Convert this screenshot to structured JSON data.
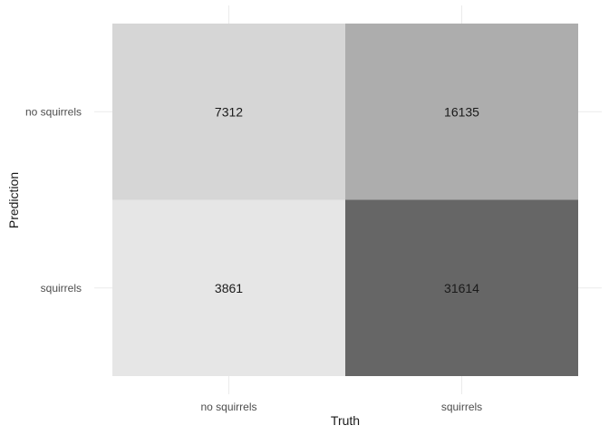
{
  "chart_data": {
    "type": "heatmap",
    "title": "",
    "xlabel": "Truth",
    "ylabel": "Prediction",
    "x_categories": [
      "no squirrels",
      "squirrels"
    ],
    "y_categories": [
      "no squirrels",
      "squirrels"
    ],
    "cells": [
      {
        "truth": "no squirrels",
        "prediction": "no squirrels",
        "value": 7312
      },
      {
        "truth": "squirrels",
        "prediction": "no squirrels",
        "value": 16135
      },
      {
        "truth": "no squirrels",
        "prediction": "squirrels",
        "value": 3861
      },
      {
        "truth": "squirrels",
        "prediction": "squirrels",
        "value": 31614
      }
    ],
    "grid": true,
    "legend": "none",
    "colors": {
      "low": "#e6e6e6",
      "high": "#666666",
      "background": "#ffffff",
      "grid": "#ebebeb"
    }
  }
}
